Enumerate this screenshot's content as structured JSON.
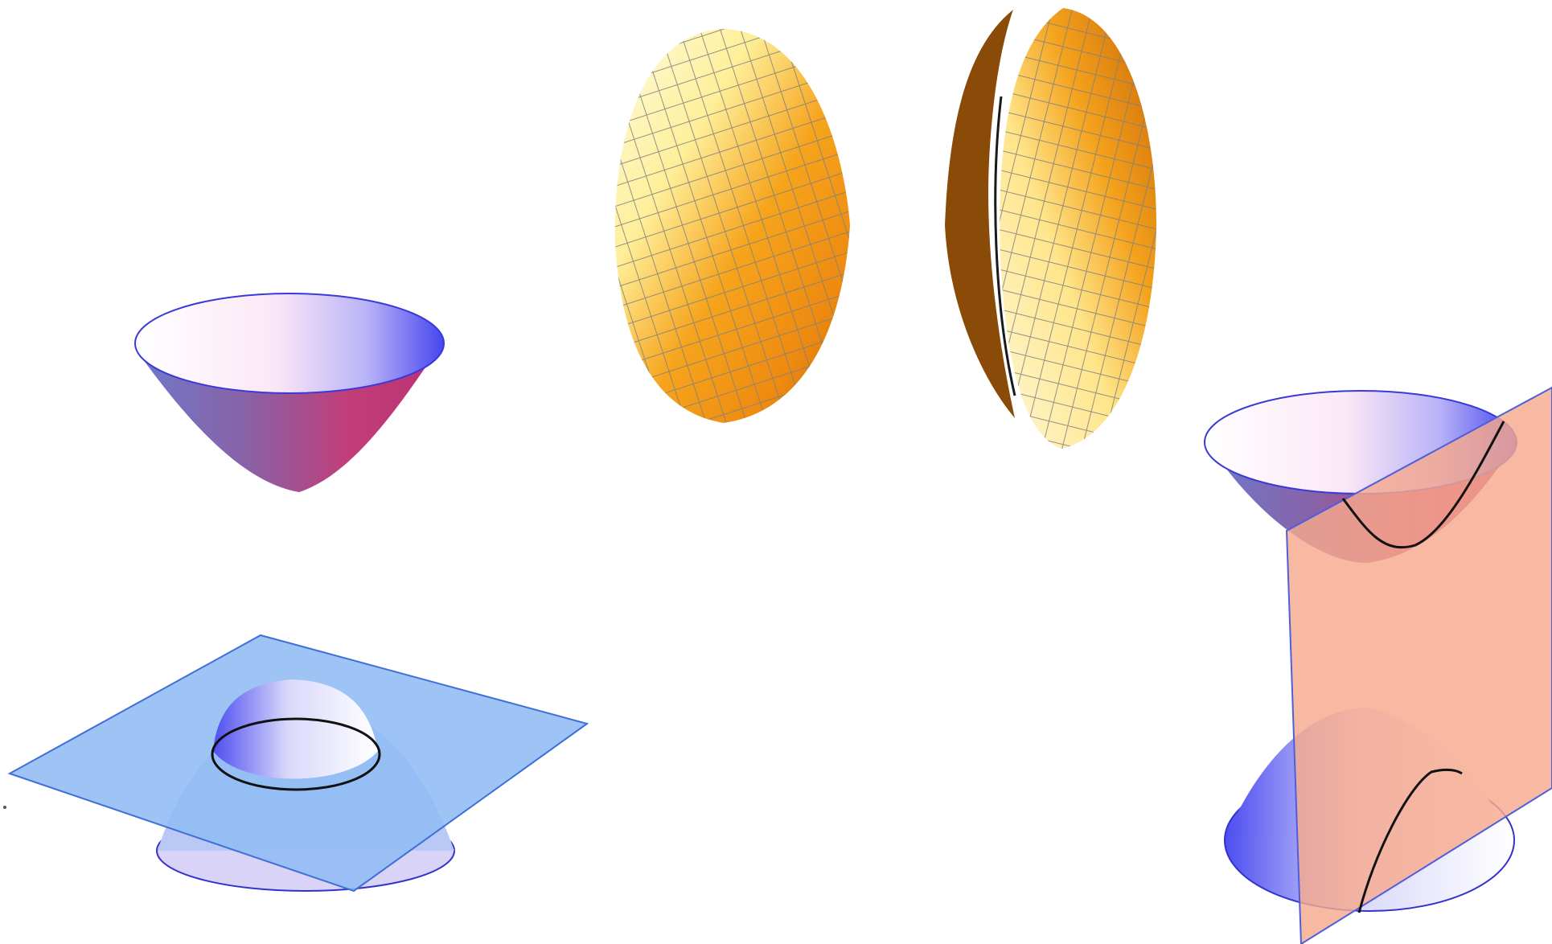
{
  "figures": [
    {
      "id": "cone",
      "description_color": "#6b5cc0"
    },
    {
      "id": "ellipsoid-left",
      "description_color": "#f0a020"
    },
    {
      "id": "ellipsoid-right",
      "description_color": "#f0a020"
    },
    {
      "id": "cone-with-plane",
      "description_color": "#8fbcf0"
    },
    {
      "id": "cone-with-vertical-plane",
      "description_color": "#f4b6a0"
    }
  ],
  "colors": {
    "cone_light": "#ffffff",
    "cone_blue": "#4f4ff0",
    "cone_magenta": "#b8387a",
    "gold": "#f29a12",
    "gold_light": "#ffffd8",
    "grid": "#7a7a7a",
    "plane_blue": "#7fb4f2",
    "plane_blue_edge": "#3f6fd8",
    "plane_salmon": "#f7a78c",
    "plane_salmon_edge": "#5b6ee0",
    "curve": "#111111"
  }
}
